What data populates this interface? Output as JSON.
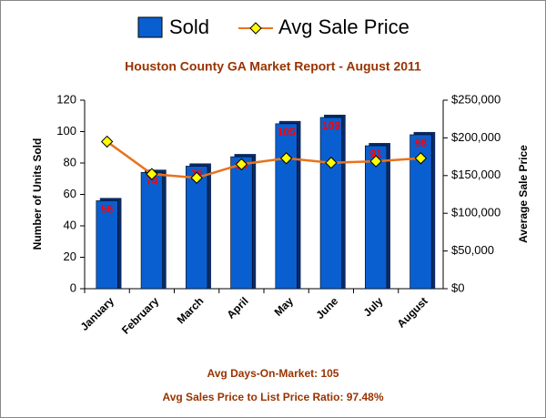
{
  "chart_data": {
    "type": "bar-line",
    "title": "Houston County GA Market Report - August 2011",
    "ylabel": "Number of Units Sold",
    "y2label": "Average Sale Price",
    "annotations": [
      "Avg Days-On-Market: 105",
      "Avg Sales Price to List Price Ratio: 97.48%"
    ],
    "categories": [
      "January",
      "February",
      "March",
      "April",
      "May",
      "June",
      "July",
      "August"
    ],
    "series": [
      {
        "name": "Sold",
        "type": "bar",
        "color": "#0a5fd0",
        "label_color": "#ff0000",
        "values": [
          56,
          74,
          78,
          84,
          105,
          109,
          91,
          98
        ]
      },
      {
        "name": "Avg Sale Price",
        "type": "line",
        "axis": "y2",
        "color": "#e8731c",
        "marker_color": "#ffff00",
        "values": [
          195000,
          152000,
          147000,
          165000,
          173000,
          167000,
          169000,
          173000
        ]
      }
    ],
    "ylim": [
      0,
      120
    ],
    "yticks": [
      0,
      20,
      40,
      60,
      80,
      100,
      120
    ],
    "y2lim": [
      0,
      250000
    ],
    "y2ticks": [
      {
        "value": 0,
        "label": "$0"
      },
      {
        "value": 50000,
        "label": "$50,000"
      },
      {
        "value": 100000,
        "label": "$100,000"
      },
      {
        "value": 150000,
        "label": "$150,000"
      },
      {
        "value": 200000,
        "label": "$200,000"
      },
      {
        "value": 250000,
        "label": "$250,000"
      }
    ]
  }
}
